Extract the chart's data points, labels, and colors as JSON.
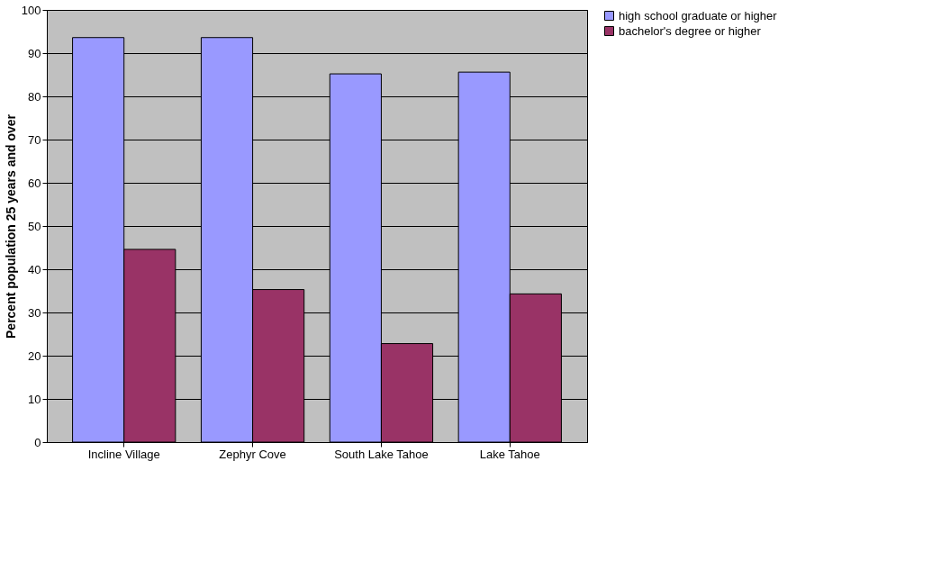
{
  "chart_data": {
    "type": "bar",
    "ylabel": "Percent population 25 years and over",
    "categories": [
      "Incline Village",
      "Zephyr Cove",
      "South Lake Tahoe",
      "Lake Tahoe"
    ],
    "series": [
      {
        "name": "high school graduate or higher",
        "color": "#9999ff",
        "values": [
          93.6,
          93.6,
          85.2,
          85.6
        ]
      },
      {
        "name": "bachelor's degree or higher",
        "color": "#993366",
        "values": [
          44.6,
          35.3,
          22.8,
          34.3
        ]
      }
    ],
    "ylim": [
      0,
      100
    ],
    "yticks": [
      0,
      10,
      20,
      30,
      40,
      50,
      60,
      70,
      80,
      90,
      100
    ],
    "grid": "y",
    "legend": "right"
  }
}
